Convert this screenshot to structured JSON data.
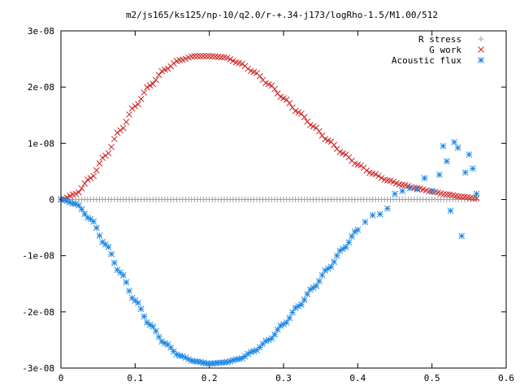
{
  "chart_data": {
    "type": "scatter",
    "title": "m2/js165/ks125/np-10/q2.0/r-+.34-j173/logRho-1.5/M1.00/512",
    "xlabel": "",
    "ylabel": "",
    "xlim": [
      0,
      0.6
    ],
    "ylim": [
      -3e-08,
      3e-08
    ],
    "x_ticks": [
      "0",
      "0.1",
      "0.2",
      "0.3",
      "0.4",
      "0.5",
      "0.6"
    ],
    "y_ticks": [
      "3e-08",
      "2e-08",
      "1e-08",
      "0",
      "-1e-08",
      "-2e-08",
      "-3e-08"
    ],
    "grid": false,
    "legend_position": "top-right",
    "series": [
      {
        "name": "R stress",
        "marker": "plus",
        "color": "#a0a0a0",
        "x": [
          0.0,
          0.02,
          0.04,
          0.06,
          0.08,
          0.1,
          0.12,
          0.14,
          0.16,
          0.18,
          0.2,
          0.22,
          0.24,
          0.26,
          0.28,
          0.3,
          0.32,
          0.34,
          0.36,
          0.38,
          0.4,
          0.42,
          0.44,
          0.46,
          0.48,
          0.5,
          0.52,
          0.54,
          0.56
        ],
        "y": [
          0,
          0,
          0,
          0,
          0,
          0,
          0,
          0,
          0,
          0,
          0,
          0,
          0,
          0,
          0,
          0,
          0,
          0,
          0,
          0,
          0,
          0,
          0,
          0,
          0,
          0,
          0,
          0,
          0
        ]
      },
      {
        "name": "G work",
        "marker": "cross",
        "color": "#cc2222",
        "x": [
          0.0,
          0.02,
          0.04,
          0.06,
          0.08,
          0.1,
          0.12,
          0.14,
          0.16,
          0.18,
          0.2,
          0.22,
          0.24,
          0.26,
          0.28,
          0.3,
          0.32,
          0.34,
          0.36,
          0.38,
          0.4,
          0.42,
          0.44,
          0.46,
          0.48,
          0.5,
          0.52,
          0.54,
          0.56
        ],
        "y": [
          0.0,
          1e-09,
          3.8e-09,
          7.8e-09,
          1.23e-08,
          1.66e-08,
          2.03e-08,
          2.31e-08,
          2.48e-08,
          2.55e-08,
          2.55e-08,
          2.53e-08,
          2.43e-08,
          2.27e-08,
          2.05e-08,
          1.8e-08,
          1.55e-08,
          1.3e-08,
          1.05e-08,
          8.2e-09,
          6.2e-09,
          4.6e-09,
          3.4e-09,
          2.6e-09,
          2e-09,
          1.4e-09,
          9e-10,
          5e-10,
          2e-10
        ]
      },
      {
        "name": "Acoustic flux",
        "marker": "star",
        "color": "#1e88e5",
        "x": [
          0.0,
          0.02,
          0.04,
          0.06,
          0.08,
          0.1,
          0.12,
          0.14,
          0.16,
          0.18,
          0.2,
          0.22,
          0.24,
          0.26,
          0.28,
          0.3,
          0.32,
          0.34,
          0.36,
          0.38,
          0.4,
          0.41,
          0.42,
          0.43,
          0.44,
          0.45,
          0.46,
          0.47,
          0.48,
          0.49,
          0.5,
          0.51,
          0.515,
          0.52,
          0.525,
          0.53,
          0.535,
          0.54,
          0.545,
          0.55,
          0.555,
          0.56
        ],
        "y": [
          0.0,
          -8e-10,
          -3.5e-09,
          -8e-09,
          -1.3e-08,
          -1.8e-08,
          -2.23e-08,
          -2.56e-08,
          -2.78e-08,
          -2.88e-08,
          -2.92e-08,
          -2.9e-08,
          -2.84e-08,
          -2.7e-08,
          -2.5e-08,
          -2.22e-08,
          -1.9e-08,
          -1.57e-08,
          -1.23e-08,
          -8.8e-09,
          -5.4e-09,
          -4e-09,
          -2.8e-09,
          -2.6e-09,
          -1.6e-09,
          1e-09,
          1.5e-09,
          2e-09,
          1.8e-09,
          3.8e-09,
          1.5e-09,
          4.4e-09,
          9.5e-09,
          6.8e-09,
          -2e-09,
          1.02e-08,
          9.2e-09,
          -6.5e-09,
          4.8e-09,
          8e-09,
          5.5e-09,
          1e-09
        ]
      }
    ]
  }
}
